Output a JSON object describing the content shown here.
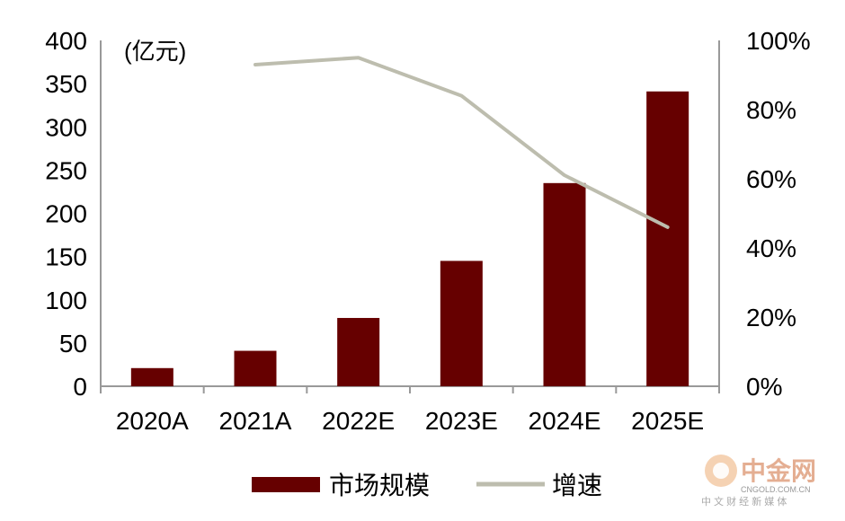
{
  "chart_data": {
    "type": "bar",
    "categories": [
      "2020A",
      "2021A",
      "2022E",
      "2023E",
      "2024E",
      "2025E"
    ],
    "unit_label": "(亿元)",
    "series": [
      {
        "name": "市场规模",
        "type": "bar",
        "axis": "left",
        "color": "#660000",
        "values": [
          21,
          41,
          79,
          145,
          235,
          341
        ]
      },
      {
        "name": "增速",
        "type": "line",
        "axis": "right",
        "color": "#BDBDAE",
        "values": [
          null,
          0.93,
          0.95,
          0.84,
          0.61,
          0.46
        ]
      }
    ],
    "left_axis": {
      "ylim": [
        0,
        400
      ],
      "ticks": [
        "0",
        "50",
        "100",
        "150",
        "200",
        "250",
        "300",
        "350",
        "400"
      ]
    },
    "right_axis": {
      "ylim": [
        0,
        1
      ],
      "ticks": [
        "0%",
        "20%",
        "40%",
        "60%",
        "80%",
        "100%"
      ]
    },
    "grid": false,
    "legend_position": "bottom"
  },
  "watermark": {
    "name": "中金网",
    "domain": "CNGOLD.COM.CN",
    "tagline": "中 文 财 经 新 媒 体"
  }
}
